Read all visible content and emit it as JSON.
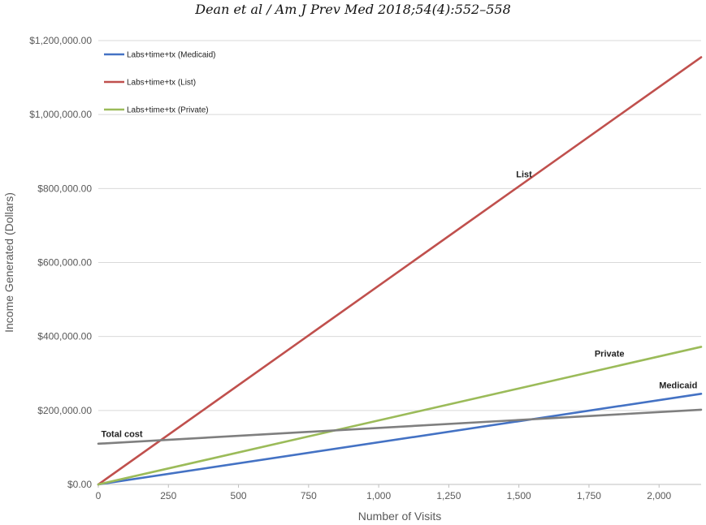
{
  "header": {
    "citation": "Dean et al / Am J Prev Med 2018;54(4):552–558"
  },
  "chart_data": {
    "type": "line",
    "title": "",
    "xlabel": "Number of Visits",
    "ylabel": "Income Generated (Dollars)",
    "xlim": [
      0,
      2150
    ],
    "ylim": [
      0,
      1200000
    ],
    "x_ticks": [
      "0",
      "250",
      "500",
      "750",
      "1,000",
      "1,250",
      "1,500",
      "1,750",
      "2,000"
    ],
    "y_ticks": [
      "$0.00",
      "$200,000.00",
      "$400,000.00",
      "$600,000.00",
      "$800,000.00",
      "$1,000,000.00",
      "$1,200,000.00"
    ],
    "grid": "horizontal",
    "legend_position": "top-left",
    "series": [
      {
        "name": "Labs+time+tx (Medicaid)",
        "color": "#4472C4",
        "x": [
          0,
          2150
        ],
        "y": [
          0,
          245000
        ]
      },
      {
        "name": "Labs+time+tx (List)",
        "color": "#C0504D",
        "x": [
          0,
          2150
        ],
        "y": [
          0,
          1155000
        ]
      },
      {
        "name": "Labs+time+tx (Private)",
        "color": "#9BBB59",
        "x": [
          0,
          2150
        ],
        "y": [
          0,
          372000
        ]
      },
      {
        "name": "",
        "color": "#7F7F7F",
        "x": [
          0,
          2150
        ],
        "y": [
          110000,
          202000
        ]
      }
    ],
    "annotations": [
      {
        "text": "List",
        "x": 1490,
        "y": 830000
      },
      {
        "text": "Private",
        "x": 1770,
        "y": 345000
      },
      {
        "text": "Medicaid",
        "x": 2000,
        "y": 260000
      },
      {
        "text": "Total cost",
        "x": 10,
        "y": 128000
      }
    ]
  }
}
